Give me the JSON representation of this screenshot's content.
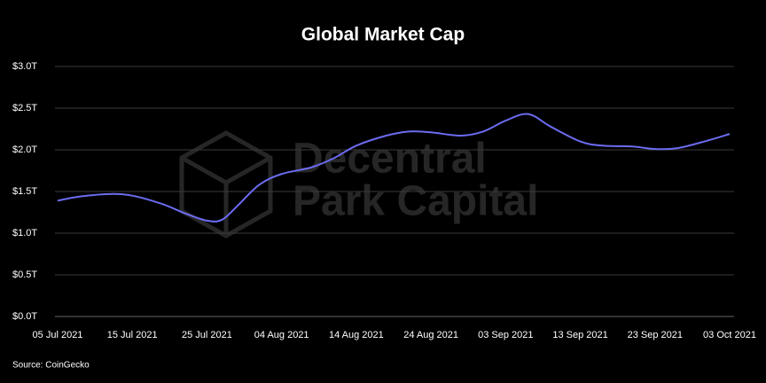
{
  "chart_data": {
    "type": "line",
    "title": "Global Market Cap",
    "source": "Source: CoinGecko",
    "watermark": [
      "Decentral",
      "Park Capital"
    ],
    "x": [
      "2021-07-05",
      "2021-07-08",
      "2021-07-12",
      "2021-07-15",
      "2021-07-19",
      "2021-07-22",
      "2021-07-25",
      "2021-07-27",
      "2021-07-29",
      "2021-08-01",
      "2021-08-04",
      "2021-08-08",
      "2021-08-11",
      "2021-08-14",
      "2021-08-18",
      "2021-08-21",
      "2021-08-24",
      "2021-08-28",
      "2021-08-31",
      "2021-09-03",
      "2021-09-06",
      "2021-09-09",
      "2021-09-13",
      "2021-09-16",
      "2021-09-20",
      "2021-09-23",
      "2021-09-26",
      "2021-09-30",
      "2021-10-03"
    ],
    "series": [
      {
        "name": "Global Market Cap",
        "color": "#6b6cf0",
        "values": [
          1.39,
          1.44,
          1.47,
          1.45,
          1.35,
          1.24,
          1.15,
          1.16,
          1.32,
          1.58,
          1.71,
          1.79,
          1.9,
          2.05,
          2.17,
          2.22,
          2.21,
          2.17,
          2.22,
          2.35,
          2.43,
          2.28,
          2.1,
          2.05,
          2.04,
          2.01,
          2.02,
          2.11,
          2.19
        ]
      }
    ],
    "xlim": [
      "2021-07-05",
      "2021-10-03"
    ],
    "xticks": [
      {
        "value": "2021-07-05",
        "label": "05 Jul 2021"
      },
      {
        "value": "2021-07-15",
        "label": "15 Jul 2021"
      },
      {
        "value": "2021-07-25",
        "label": "25 Jul 2021"
      },
      {
        "value": "2021-08-04",
        "label": "04 Aug 2021"
      },
      {
        "value": "2021-08-14",
        "label": "14 Aug 2021"
      },
      {
        "value": "2021-08-24",
        "label": "24 Aug 2021"
      },
      {
        "value": "2021-09-03",
        "label": "03 Sep 2021"
      },
      {
        "value": "2021-09-13",
        "label": "13 Sep 2021"
      },
      {
        "value": "2021-09-23",
        "label": "23 Sep 2021"
      },
      {
        "value": "2021-10-03",
        "label": "03 Oct 2021"
      }
    ],
    "ylim": [
      0,
      3
    ],
    "yticks": [
      {
        "value": 0,
        "label": "$0.0T"
      },
      {
        "value": 0.5,
        "label": "$0.5T"
      },
      {
        "value": 1,
        "label": "$1.0T"
      },
      {
        "value": 1.5,
        "label": "$1.5T"
      },
      {
        "value": 2,
        "label": "$2.0T"
      },
      {
        "value": 2.5,
        "label": "$2.5T"
      },
      {
        "value": 3,
        "label": "$3.0T"
      }
    ],
    "grid": true
  }
}
